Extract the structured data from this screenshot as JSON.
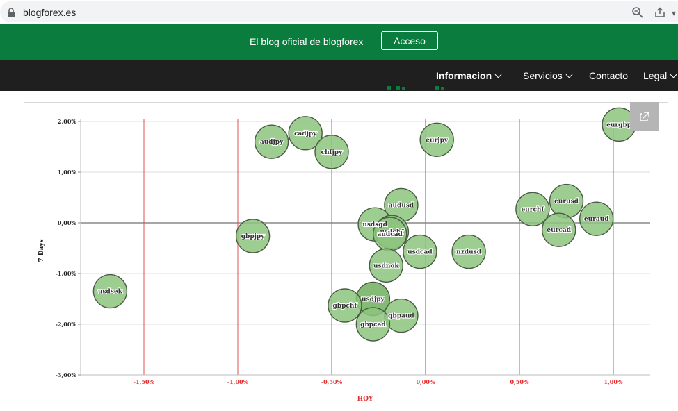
{
  "browser": {
    "url": "blogforex.es"
  },
  "header": {
    "tagline": "El blog oficial de blogforex",
    "login_label": "Acceso"
  },
  "nav": {
    "items": [
      {
        "label": "Informacion"
      },
      {
        "label": "Servicios"
      },
      {
        "label": "Contacto"
      },
      {
        "label": "Legal"
      }
    ]
  },
  "colors": {
    "brand_green": "#0a7d3e",
    "nav_dark": "#1f1f1f",
    "bubble_fill": "#8cc47c",
    "vertical_line": "#e05050",
    "tick_x": "#e03030"
  },
  "chart_data": {
    "type": "scatter",
    "xlabel": "HOY",
    "ylabel": "7 Days",
    "xlim": [
      -1.95,
      1.2
    ],
    "ylim": [
      -3.0,
      2.05
    ],
    "x_ticks": [
      "-1,50%",
      "-1,00%",
      "-0,50%",
      "0,00%",
      "0,50%",
      "1,00%"
    ],
    "x_tick_values": [
      -1.5,
      -1.0,
      -0.5,
      0.0,
      0.5,
      1.0
    ],
    "y_ticks": [
      "2,00%",
      "1,00%",
      "0,00%",
      "-1,00%",
      "-2,00%",
      "-3,00%"
    ],
    "y_tick_values": [
      2,
      1,
      0,
      -1,
      -2,
      -3
    ],
    "points": [
      {
        "label": "audjpy",
        "x": -0.82,
        "y": 1.6
      },
      {
        "label": "cadjpy",
        "x": -0.64,
        "y": 1.77
      },
      {
        "label": "chfjpy",
        "x": -0.5,
        "y": 1.4
      },
      {
        "label": "eurjpy",
        "x": 0.06,
        "y": 1.64
      },
      {
        "label": "eurgbp",
        "x": 1.03,
        "y": 1.94
      },
      {
        "label": "audusd",
        "x": -0.13,
        "y": 0.35
      },
      {
        "label": "usdsgd",
        "x": -0.27,
        "y": -0.03
      },
      {
        "label": "usdchf",
        "x": -0.18,
        "y": -0.18
      },
      {
        "label": "audcad",
        "x": -0.19,
        "y": -0.22
      },
      {
        "label": "usdcad",
        "x": -0.03,
        "y": -0.57
      },
      {
        "label": "nzdusd",
        "x": 0.23,
        "y": -0.57
      },
      {
        "label": "usdnok",
        "x": -0.21,
        "y": -0.84
      },
      {
        "label": "gbpjpy",
        "x": -0.92,
        "y": -0.26
      },
      {
        "label": "usdsek",
        "x": -1.68,
        "y": -1.35
      },
      {
        "label": "usdjpy",
        "x": -0.28,
        "y": -1.5
      },
      {
        "label": "gbpchf",
        "x": -0.43,
        "y": -1.63
      },
      {
        "label": "gbpaud",
        "x": -0.13,
        "y": -1.83
      },
      {
        "label": "gbpcad",
        "x": -0.28,
        "y": -2.0
      },
      {
        "label": "eurchf",
        "x": 0.57,
        "y": 0.27
      },
      {
        "label": "eurusd",
        "x": 0.75,
        "y": 0.43
      },
      {
        "label": "eurcad",
        "x": 0.71,
        "y": -0.14
      },
      {
        "label": "euraud",
        "x": 0.91,
        "y": 0.08
      }
    ]
  }
}
